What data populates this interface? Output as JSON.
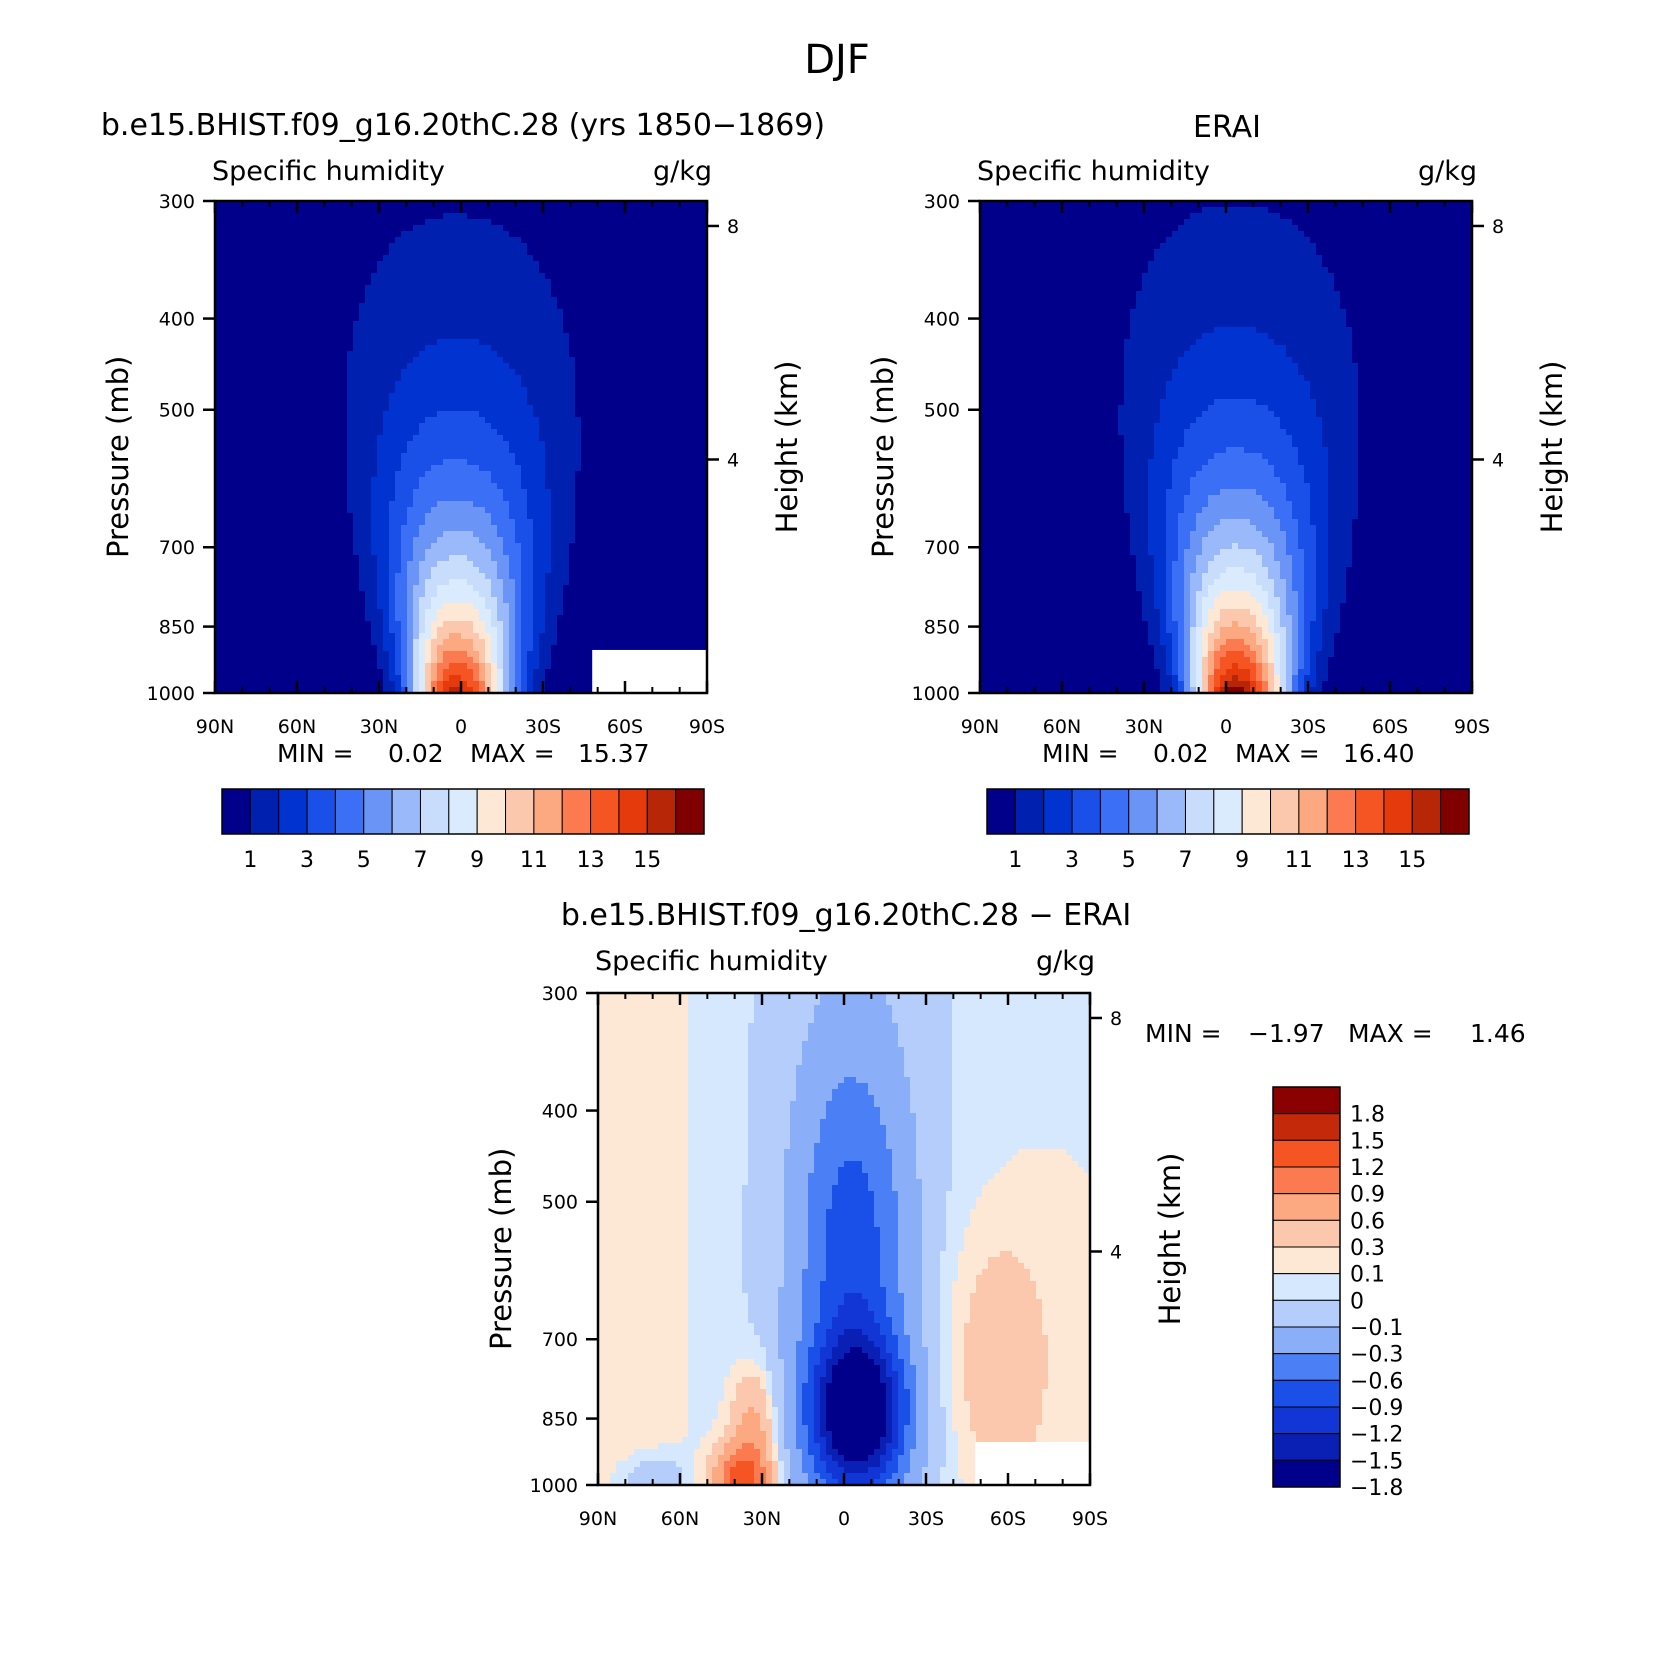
{
  "figure": {
    "title": "DJF"
  },
  "colors": {
    "abs": [
      "#00008b",
      "#0020b0",
      "#0033d0",
      "#1a4fe8",
      "#3b6ff5",
      "#6a95f7",
      "#9ab9fa",
      "#c8dcfb",
      "#d9ebfd",
      "#fde8d6",
      "#fcc8ad",
      "#fca880",
      "#fb7a50",
      "#f55423",
      "#e43a0c",
      "#b82608",
      "#800000"
    ],
    "diff": [
      "#00008b",
      "#0a1fb3",
      "#1236d6",
      "#1a4fe8",
      "#4b7ff5",
      "#8aaef8",
      "#b4cdfb",
      "#d6e8fd",
      "#fde8d6",
      "#fcc8ad",
      "#fca880",
      "#fb7a50",
      "#f55423",
      "#c42a0a",
      "#8b0000"
    ]
  },
  "chart_data": [
    {
      "type": "contour",
      "title": "b.e15.BHIST.f09_g16.20thC.28 (yrs 1850−1869)",
      "left_label": "Specific humidity",
      "right_label": "g/kg",
      "xlabel": "",
      "ylabel": "Pressure (mb)",
      "ylabel_right": "Height (km)",
      "xticks": [
        "90N",
        "60N",
        "30N",
        "0",
        "30S",
        "60S",
        "90S"
      ],
      "xlim": [
        90,
        -90
      ],
      "yticks": [
        "300",
        "400",
        "500",
        "700",
        "850",
        "1000"
      ],
      "ylim": [
        1000,
        300
      ],
      "y_scale": "log",
      "yticks_right": [
        "8",
        "4"
      ],
      "min_label": "MIN =",
      "min_value": "0.02",
      "max_label": "MAX =",
      "max_value": "15.37",
      "min": 0.02,
      "max": 15.37,
      "peak_lat": 2,
      "peak_value": 15.37,
      "levels": [
        1,
        2,
        3,
        4,
        5,
        6,
        7,
        8,
        9,
        10,
        11,
        12,
        13,
        14,
        15,
        16
      ],
      "colorbar_labels": [
        "1",
        "3",
        "5",
        "7",
        "9",
        "11",
        "13",
        "15"
      ],
      "masked_below_lat": -48,
      "masked_below_pressure": 900
    },
    {
      "type": "contour",
      "title": "ERAI",
      "left_label": "Specific humidity",
      "right_label": "g/kg",
      "xlabel": "",
      "ylabel": "Pressure (mb)",
      "ylabel_right": "Height (km)",
      "xticks": [
        "90N",
        "60N",
        "30N",
        "0",
        "30S",
        "60S",
        "90S"
      ],
      "xlim": [
        90,
        -90
      ],
      "yticks": [
        "300",
        "400",
        "500",
        "700",
        "850",
        "1000"
      ],
      "ylim": [
        1000,
        300
      ],
      "y_scale": "log",
      "yticks_right": [
        "8",
        "4"
      ],
      "min_label": "MIN =",
      "min_value": "0.02",
      "max_label": "MAX =",
      "max_value": "16.40",
      "min": 0.02,
      "max": 16.4,
      "peak_lat": -3,
      "peak_value": 16.4,
      "levels": [
        1,
        2,
        3,
        4,
        5,
        6,
        7,
        8,
        9,
        10,
        11,
        12,
        13,
        14,
        15,
        16
      ],
      "colorbar_labels": [
        "1",
        "3",
        "5",
        "7",
        "9",
        "11",
        "13",
        "15"
      ]
    },
    {
      "type": "contour",
      "title": "b.e15.BHIST.f09_g16.20thC.28 − ERAI",
      "left_label": "Specific humidity",
      "right_label": "g/kg",
      "xlabel": "",
      "ylabel": "Pressure (mb)",
      "ylabel_right": "Height (km)",
      "xticks": [
        "90N",
        "60N",
        "30N",
        "0",
        "30S",
        "60S",
        "90S"
      ],
      "xlim": [
        90,
        -90
      ],
      "yticks": [
        "300",
        "400",
        "500",
        "700",
        "850",
        "1000"
      ],
      "ylim": [
        1000,
        300
      ],
      "y_scale": "log",
      "yticks_right": [
        "8",
        "4"
      ],
      "min_label": "MIN =",
      "min_value": "−1.97",
      "max_label": "MAX =",
      "max_value": "1.46",
      "min": -1.97,
      "max": 1.46,
      "levels": [
        -1.8,
        -1.5,
        -1.2,
        -0.9,
        -0.6,
        -0.3,
        -0.1,
        0,
        0.1,
        0.3,
        0.6,
        0.9,
        1.2,
        1.5,
        1.8
      ],
      "colorbar_labels": [
        "1.8",
        "1.5",
        "1.2",
        "0.9",
        "0.6",
        "0.3",
        "0.1",
        "0",
        "−0.1",
        "−0.3",
        "−0.6",
        "−0.9",
        "−1.2",
        "−1.5",
        "−1.8"
      ],
      "masked_below_lat": -48,
      "masked_below_pressure": 900
    }
  ]
}
